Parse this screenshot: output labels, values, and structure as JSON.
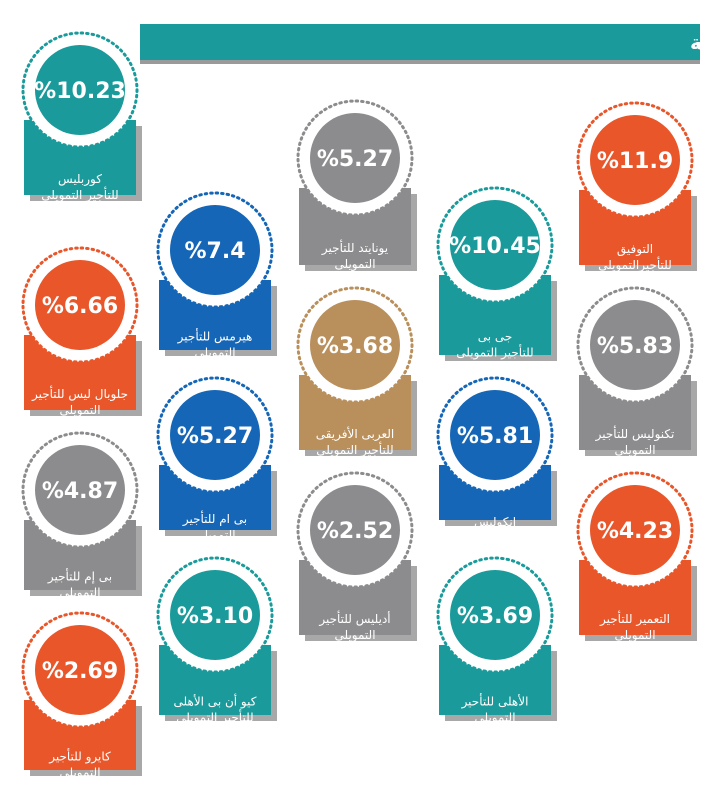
{
  "header": {
    "title": "شركات التأجير التمويلى وحصصها السوقية"
  },
  "items": [
    {
      "value": "%10.23",
      "label": [
        "كوربليس",
        "للتأجير التمويلى"
      ],
      "color": "#1a9a9a"
    },
    {
      "value": "%11.9",
      "label": [
        "التوفيق",
        "للتأجيرالتمويلى"
      ],
      "color": "#e8562a"
    },
    {
      "value": "%5.27",
      "label": [
        "يونايتد للتأجير",
        "التمويلى"
      ],
      "color": "#8c8c8e"
    },
    {
      "value": "%10.45",
      "label": [
        "جى بى",
        "للتأجير التمويلى"
      ],
      "color": "#1a9a9a"
    },
    {
      "value": "%7.4",
      "label": [
        "هيرمس للتأجير",
        "التمويلى"
      ],
      "color": "#1566b7"
    },
    {
      "value": "%6.66",
      "label": [
        "جلوبال ليس للتأجير",
        "التمويلى"
      ],
      "color": "#e8562a"
    },
    {
      "value": "%5.83",
      "label": [
        "تكنوليس للتأجير",
        "التمويلى"
      ],
      "color": "#8c8c8e"
    },
    {
      "value": "%3.68",
      "label": [
        "العربى الأفريقى",
        "للتأجير التمويلى"
      ],
      "color": "#b98f5c"
    },
    {
      "value": "%5.81",
      "label": [
        "انكوليس"
      ],
      "color": "#1566b7"
    },
    {
      "value": "%5.27",
      "label": [
        "بى ام للتأجير",
        "التمويلى"
      ],
      "color": "#1566b7"
    },
    {
      "value": "%4.87",
      "label": [
        "بى إم للتأجير",
        "التمويلى"
      ],
      "color": "#8c8c8e"
    },
    {
      "value": "%4.23",
      "label": [
        "التعمير للتأجير",
        "التمويلى"
      ],
      "color": "#e8562a"
    },
    {
      "value": "%2.52",
      "label": [
        "أديليس للتأجير",
        "التمويلى"
      ],
      "color": "#8c8c8e"
    },
    {
      "value": "%3.69",
      "label": [
        "الأهلى للتأحير",
        "التمويلى"
      ],
      "color": "#1a9a9a"
    },
    {
      "value": "%3.10",
      "label": [
        "كيو أن بى الأهلى",
        "للتأجير التمويلى"
      ],
      "color": "#1a9a9a"
    },
    {
      "value": "%2.69",
      "label": [
        "كايرو للتأجير",
        "التمويلى"
      ],
      "color": "#e8562a"
    }
  ]
}
